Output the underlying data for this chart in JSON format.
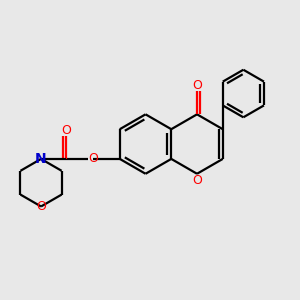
{
  "background_color": "#e8e8e8",
  "bond_color": "#000000",
  "oxygen_color": "#ff0000",
  "nitrogen_color": "#0000cc",
  "line_width": 1.6,
  "figsize": [
    3.0,
    3.0
  ],
  "dpi": 100,
  "xlim": [
    0,
    10
  ],
  "ylim": [
    0,
    10
  ]
}
